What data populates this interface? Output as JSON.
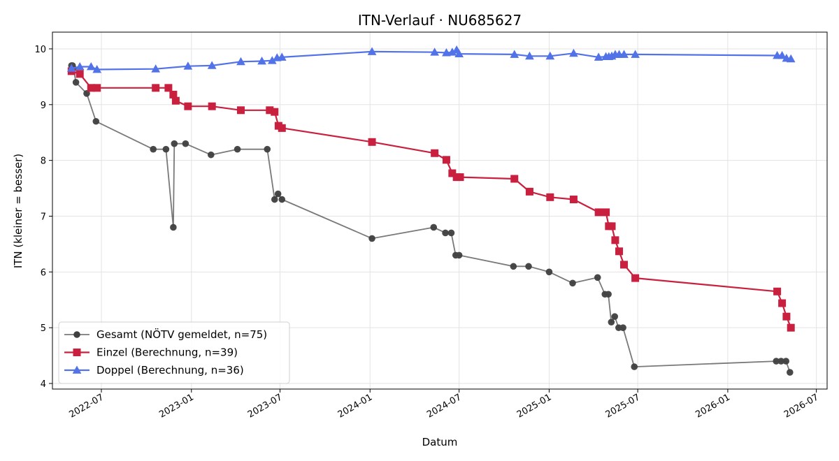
{
  "chart_data": {
    "type": "line",
    "title": "ITN-Verlauf · NU685627",
    "xlabel": "Datum",
    "ylabel": "ITN  (kleiner = besser)",
    "x_type": "date",
    "xlim": [
      "2022-03-23",
      "2026-07-23"
    ],
    "ylim": [
      3.9,
      10.3
    ],
    "x_ticks": [
      "2022-07-01",
      "2023-01-01",
      "2023-07-01",
      "2024-01-01",
      "2024-07-01",
      "2025-01-01",
      "2025-07-01",
      "2026-01-01",
      "2026-07-01"
    ],
    "x_tick_labels": [
      "2022-07",
      "2023-01",
      "2023-07",
      "2024-01",
      "2024-07",
      "2025-01",
      "2025-07",
      "2026-01",
      "2026-07"
    ],
    "y_ticks": [
      4,
      5,
      6,
      7,
      8,
      9,
      10
    ],
    "y_tick_labels": [
      "4",
      "5",
      "6",
      "7",
      "8",
      "9",
      "10"
    ],
    "grid": true,
    "legend_position": "lower-left",
    "series": [
      {
        "name": "Gesamt (NÖTV gemeldet, n=75)",
        "color": "#404040",
        "marker": "circle",
        "x": [
          "2022-05-01",
          "2022-05-03",
          "2022-05-05",
          "2022-05-10",
          "2022-06-01",
          "2022-06-20",
          "2022-10-15",
          "2022-11-10",
          "2022-11-25",
          "2022-11-27",
          "2022-12-20",
          "2023-02-10",
          "2023-04-05",
          "2023-06-05",
          "2023-06-20",
          "2023-06-27",
          "2023-07-05",
          "2024-01-05",
          "2024-05-10",
          "2024-06-03",
          "2024-06-15",
          "2024-06-24",
          "2024-07-01",
          "2024-10-20",
          "2024-11-20",
          "2025-01-01",
          "2025-02-18",
          "2025-04-10",
          "2025-04-25",
          "2025-05-02",
          "2025-05-08",
          "2025-05-15",
          "2025-05-23",
          "2025-06-01",
          "2025-06-24",
          "2026-04-10",
          "2026-04-20",
          "2026-04-30",
          "2026-05-08"
        ],
        "y": [
          9.7,
          9.7,
          9.65,
          9.4,
          9.2,
          8.7,
          8.2,
          8.2,
          6.8,
          8.3,
          8.3,
          8.1,
          8.2,
          8.2,
          7.3,
          7.4,
          7.3,
          6.6,
          6.8,
          6.7,
          6.7,
          6.3,
          6.3,
          6.1,
          6.1,
          6.0,
          5.8,
          5.9,
          5.6,
          5.6,
          5.1,
          5.2,
          5.0,
          5.0,
          4.3,
          4.4,
          4.4,
          4.4,
          4.2
        ]
      },
      {
        "name": "Einzel (Berechnung, n=39)",
        "color": "#c8203e",
        "marker": "square",
        "x": [
          "2022-05-01",
          "2022-05-18",
          "2022-06-10",
          "2022-06-22",
          "2022-10-20",
          "2022-11-15",
          "2022-11-25",
          "2022-11-30",
          "2022-12-25",
          "2023-02-12",
          "2023-04-12",
          "2023-06-10",
          "2023-06-20",
          "2023-06-28",
          "2023-07-05",
          "2024-01-05",
          "2024-05-12",
          "2024-06-05",
          "2024-06-17",
          "2024-06-26",
          "2024-07-03",
          "2024-10-22",
          "2024-11-22",
          "2025-01-03",
          "2025-02-20",
          "2025-04-12",
          "2025-04-27",
          "2025-05-03",
          "2025-05-09",
          "2025-05-16",
          "2025-05-24",
          "2025-06-03",
          "2025-06-26",
          "2026-04-12",
          "2026-04-22",
          "2026-05-01",
          "2026-05-10"
        ],
        "y": [
          9.6,
          9.55,
          9.3,
          9.3,
          9.3,
          9.3,
          9.18,
          9.07,
          8.97,
          8.97,
          8.9,
          8.9,
          8.87,
          8.62,
          8.58,
          8.33,
          8.13,
          8.01,
          7.77,
          7.7,
          7.7,
          7.67,
          7.44,
          7.34,
          7.3,
          7.07,
          7.07,
          6.82,
          6.82,
          6.57,
          6.37,
          6.13,
          5.89,
          5.65,
          5.44,
          5.2,
          5.0
        ]
      },
      {
        "name": "Doppel (Berechnung, n=36)",
        "color": "#5272e8",
        "marker": "triangle",
        "x": [
          "2022-05-01",
          "2022-05-18",
          "2022-06-10",
          "2022-06-22",
          "2022-10-20",
          "2022-12-25",
          "2023-02-12",
          "2023-04-12",
          "2023-05-25",
          "2023-06-15",
          "2023-06-25",
          "2023-07-05",
          "2024-01-05",
          "2024-05-12",
          "2024-06-05",
          "2024-06-17",
          "2024-06-26",
          "2024-07-01",
          "2024-10-22",
          "2024-11-22",
          "2025-01-03",
          "2025-02-20",
          "2025-04-12",
          "2025-04-27",
          "2025-05-03",
          "2025-05-09",
          "2025-05-16",
          "2025-05-24",
          "2025-06-03",
          "2025-06-26",
          "2026-04-12",
          "2026-04-22",
          "2026-05-01",
          "2026-05-10"
        ],
        "y": [
          9.65,
          9.68,
          9.68,
          9.63,
          9.64,
          9.69,
          9.7,
          9.77,
          9.78,
          9.79,
          9.84,
          9.85,
          9.95,
          9.94,
          9.93,
          9.94,
          9.98,
          9.91,
          9.9,
          9.87,
          9.87,
          9.92,
          9.85,
          9.86,
          9.86,
          9.87,
          9.9,
          9.9,
          9.9,
          9.9,
          9.88,
          9.88,
          9.83,
          9.82
        ]
      }
    ]
  }
}
